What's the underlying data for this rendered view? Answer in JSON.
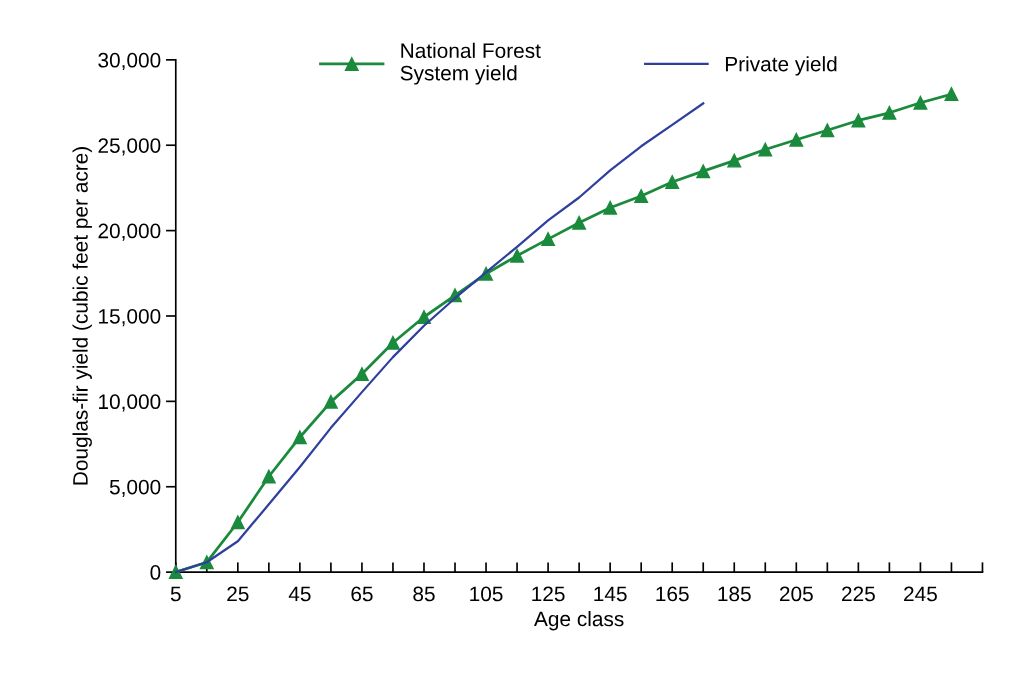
{
  "chart_data": {
    "type": "line",
    "xlabel": "Age class",
    "ylabel": "Douglas-fir yield (cubic feet per acre)",
    "x": [
      5,
      15,
      25,
      35,
      45,
      55,
      65,
      75,
      85,
      95,
      105,
      115,
      125,
      135,
      145,
      155,
      165,
      175,
      185,
      195,
      205,
      215,
      225,
      235,
      245,
      255
    ],
    "series": [
      {
        "name": "National Forest\nSystem yield",
        "color": "#1a8a3c",
        "marker": "triangle",
        "values": [
          0,
          580,
          2920,
          5600,
          7900,
          9970,
          11600,
          13430,
          14940,
          16210,
          17470,
          18530,
          19500,
          20460,
          21340,
          22030,
          22850,
          23480,
          24100,
          24750,
          25320,
          25880,
          26450,
          26900,
          27490,
          27990
        ]
      },
      {
        "name": "Private yield",
        "color": "#2e3f9e",
        "marker": "none",
        "values": [
          0,
          580,
          1810,
          3970,
          6160,
          8450,
          10540,
          12590,
          14430,
          16040,
          17550,
          19050,
          20600,
          21940,
          23530,
          24940,
          26190,
          27450,
          null,
          null,
          null,
          null,
          null,
          null,
          null,
          null
        ]
      }
    ],
    "xlim": [
      5,
      265
    ],
    "xticks": [
      5,
      {
        "value": 15,
        "label": null
      },
      25,
      {
        "value": 35,
        "label": null
      },
      45,
      {
        "value": 55,
        "label": null
      },
      65,
      {
        "value": 75,
        "label": null
      },
      85,
      {
        "value": 95,
        "label": null
      },
      105,
      {
        "value": 115,
        "label": null
      },
      125,
      {
        "value": 135,
        "label": null
      },
      145,
      {
        "value": 155,
        "label": null
      },
      165,
      {
        "value": 175,
        "label": null
      },
      185,
      {
        "value": 195,
        "label": null
      },
      205,
      {
        "value": 215,
        "label": null
      },
      225,
      {
        "value": 235,
        "label": null
      },
      245,
      {
        "value": 255,
        "label": null
      },
      {
        "value": 265,
        "label": null
      }
    ],
    "ylim": [
      0,
      30000
    ],
    "yticks": [
      0,
      {
        "value": 5000,
        "label": "5,000"
      },
      {
        "value": 10000,
        "label": "10,000"
      },
      {
        "value": 15000,
        "label": "15,000"
      },
      {
        "value": 20000,
        "label": "20,000"
      },
      {
        "value": 25000,
        "label": "25,000"
      },
      {
        "value": 30000,
        "label": "30,000"
      }
    ],
    "grid": false,
    "legend": "top"
  }
}
